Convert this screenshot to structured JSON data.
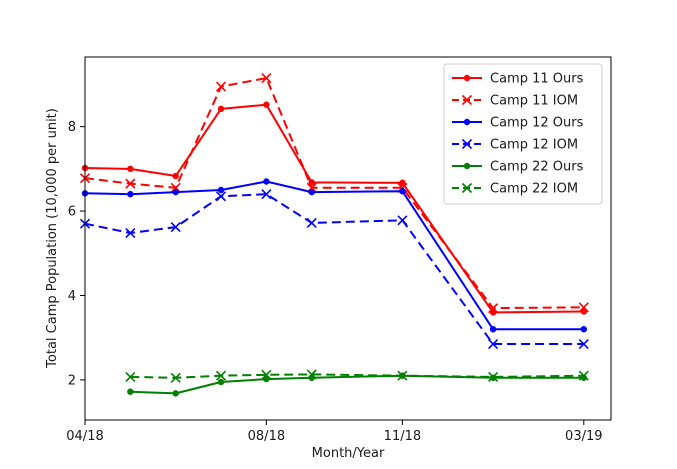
{
  "chart_data": {
    "type": "line",
    "title": "",
    "xlabel": "Month/Year",
    "ylabel": "Total Camp Population (10,000 per unit)",
    "xlim": [
      0,
      11.6
    ],
    "ylim": [
      1.05,
      9.65
    ],
    "x_ticks": [
      {
        "x": 0,
        "label": "04/18"
      },
      {
        "x": 4,
        "label": "08/18"
      },
      {
        "x": 7,
        "label": "11/18"
      },
      {
        "x": 11,
        "label": "03/19"
      }
    ],
    "y_ticks": [
      {
        "y": 2,
        "label": "2"
      },
      {
        "y": 4,
        "label": "4"
      },
      {
        "y": 6,
        "label": "6"
      },
      {
        "y": 8,
        "label": "8"
      }
    ],
    "grid": false,
    "legend_position": "top-right",
    "series": [
      {
        "name": "Camp 11 Ours",
        "color": "#ff0000",
        "linestyle": "solid",
        "marker": "dot",
        "x": [
          0,
          1,
          2,
          3,
          4,
          5,
          7,
          9,
          11
        ],
        "y": [
          7.02,
          7.0,
          6.83,
          8.42,
          8.52,
          6.68,
          6.67,
          3.6,
          3.62
        ]
      },
      {
        "name": "Camp 11 IOM",
        "color": "#ff0000",
        "linestyle": "dashed",
        "marker": "x",
        "x": [
          0,
          1,
          2,
          3,
          4,
          5,
          7,
          9,
          11
        ],
        "y": [
          6.78,
          6.65,
          6.55,
          8.95,
          9.15,
          6.55,
          6.55,
          3.7,
          3.72
        ]
      },
      {
        "name": "Camp 12 Ours",
        "color": "#0000ff",
        "linestyle": "solid",
        "marker": "dot",
        "x": [
          0,
          1,
          2,
          3,
          4,
          5,
          7,
          9,
          11
        ],
        "y": [
          6.42,
          6.4,
          6.45,
          6.5,
          6.7,
          6.45,
          6.47,
          3.2,
          3.2
        ]
      },
      {
        "name": "Camp 12 IOM",
        "color": "#0000ff",
        "linestyle": "dashed",
        "marker": "x",
        "x": [
          0,
          1,
          2,
          3,
          4,
          5,
          7,
          9,
          11
        ],
        "y": [
          5.7,
          5.48,
          5.62,
          6.35,
          6.4,
          5.72,
          5.78,
          2.85,
          2.85
        ]
      },
      {
        "name": "Camp 22 Ours",
        "color": "#008000",
        "linestyle": "solid",
        "marker": "dot",
        "x": [
          1,
          2,
          3,
          4,
          5,
          7,
          9,
          11
        ],
        "y": [
          1.72,
          1.68,
          1.95,
          2.02,
          2.05,
          2.1,
          2.05,
          2.05
        ]
      },
      {
        "name": "Camp 22 IOM",
        "color": "#008000",
        "linestyle": "dashed",
        "marker": "x",
        "x": [
          1,
          2,
          3,
          4,
          5,
          7,
          9,
          11
        ],
        "y": [
          2.07,
          2.05,
          2.1,
          2.12,
          2.13,
          2.1,
          2.07,
          2.1
        ]
      }
    ]
  }
}
